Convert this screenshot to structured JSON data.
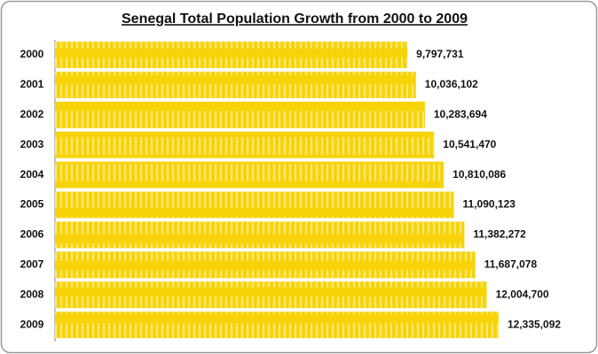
{
  "chart_data": {
    "type": "bar",
    "orientation": "horizontal",
    "title": "Senegal Total Population Growth from 2000 to 2009",
    "categories": [
      "2000",
      "2001",
      "2002",
      "2003",
      "2004",
      "2005",
      "2006",
      "2007",
      "2008",
      "2009"
    ],
    "values": [
      9797731,
      10036102,
      10283694,
      10541470,
      10810086,
      11090123,
      11382272,
      11687078,
      12004700,
      12335092
    ],
    "value_labels": [
      "9,797,731",
      "10,036,102",
      "10,283,694",
      "10,541,470",
      "10,810,086",
      "11,090,123",
      "11,382,272",
      "11,687,078",
      "12,004,700",
      "12,335,092"
    ],
    "color": "#f7d40a"
  }
}
